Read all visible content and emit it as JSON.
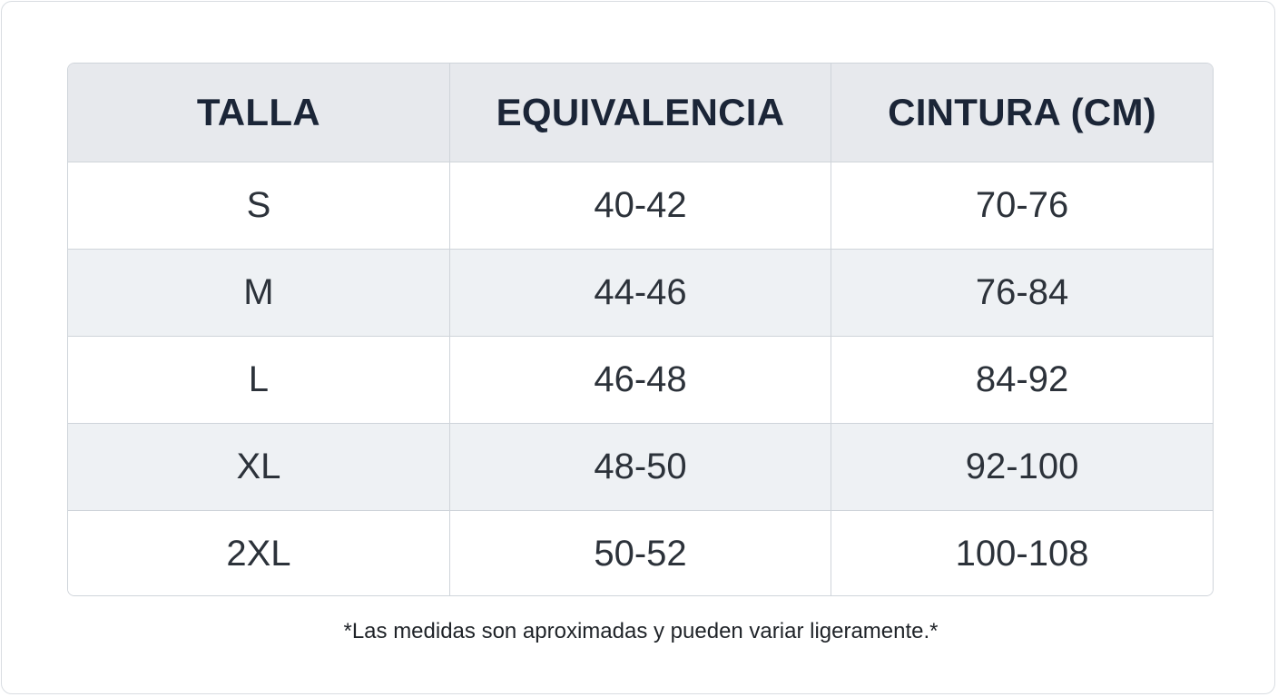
{
  "table": {
    "headers": [
      "TALLA",
      "EQUIVALENCIA",
      "CINTURA (CM)"
    ],
    "rows": [
      [
        "S",
        "40-42",
        "70-76"
      ],
      [
        "M",
        "44-46",
        "76-84"
      ],
      [
        "L",
        "46-48",
        "84-92"
      ],
      [
        "XL",
        "48-50",
        "92-100"
      ],
      [
        "2XL",
        "50-52",
        "100-108"
      ]
    ]
  },
  "footnote": "*Las medidas son aproximadas y pueden variar ligeramente.*",
  "colors": {
    "header_bg": "#e7e9ed",
    "stripe_bg": "#eef1f4",
    "header_text": "#1b2537",
    "border": "#cfd4da"
  }
}
